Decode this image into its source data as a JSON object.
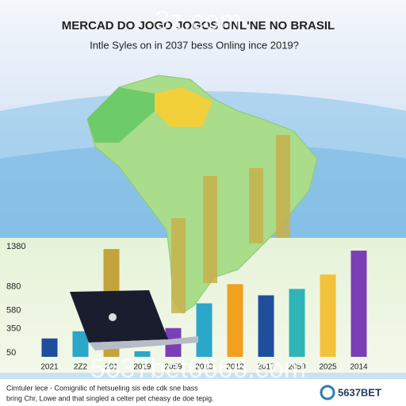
{
  "chart_data": {
    "type": "bar",
    "title": "MERCAD DO JOGO JOGOS ONL'NE NO BRASIL",
    "subtitle": "Intle Syles on in 2037 bess Onling ince 2019?",
    "categories": [
      "2021",
      "2Z2",
      "201",
      "2019",
      "2059",
      "2013",
      "2012",
      "2017",
      "2059",
      "2025",
      "2014"
    ],
    "values": [
      230,
      320,
      1350,
      70,
      360,
      670,
      910,
      770,
      850,
      1030,
      1330
    ],
    "colors": [
      "#1f4e9c",
      "#2aa7c9",
      "#c4a23c",
      "#2aa7c9",
      "#7b3fb5",
      "#2aa7c9",
      "#f2a020",
      "#1f4e9c",
      "#2fb5b5",
      "#f2c23a",
      "#7b3fb5"
    ],
    "ylim": [
      0,
      1400
    ],
    "yticks": [
      50,
      350,
      580,
      880,
      1380
    ],
    "grid": false
  },
  "watermarks": [
    "3z.com",
    "5637bet6666.com"
  ],
  "footer": [
    "Cimtuler lece - Comignilic of hetsueling sis ede cdk sne bass",
    "bring Chr, Lowe and that singled a celter pet cheasy de doe tepig."
  ],
  "logo": "5637BET"
}
